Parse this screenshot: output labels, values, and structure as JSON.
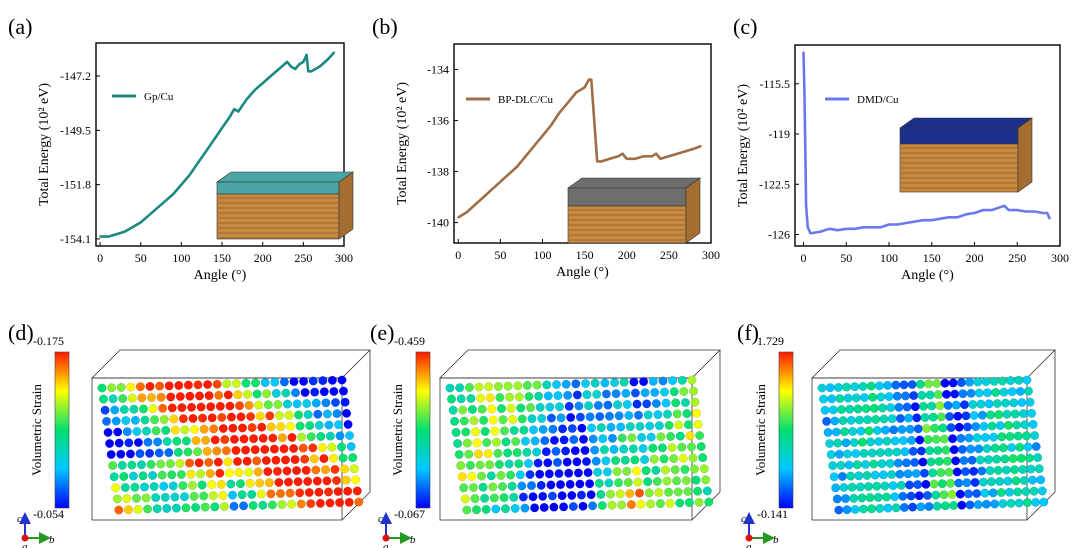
{
  "figure": {
    "panel_letters": [
      "(a)",
      "(b)",
      "(c)",
      "(d)",
      "(e)",
      "(f)"
    ],
    "colors": {
      "grad_top": "#ff1a00",
      "grad_upper": "#ffff00",
      "grad_mid": "#00e070",
      "grad_lower": "#00c8ff",
      "grad_bottom": "#0000ff",
      "copper": "#c88a40",
      "graphene": "#4aa6a6",
      "dlc": "#6e6e6e",
      "diamond": "#1a2f8a"
    },
    "axis_c": "c",
    "axis_a": "a",
    "axis_b": "b"
  },
  "chart_data": [
    {
      "type": "line",
      "xlabel": "Angle (°)",
      "ylabel": "Total Energy (10² eV)",
      "xlim": [
        -5,
        300
      ],
      "ylim": [
        -154.4,
        -145.8
      ],
      "xticks": [
        0,
        50,
        100,
        150,
        200,
        250,
        300
      ],
      "yticks": [
        -147.2,
        -149.5,
        -151.8,
        -154.1
      ],
      "series": [
        {
          "name": "Gp/Cu",
          "color": "#1a8a80",
          "x": [
            0,
            10,
            20,
            30,
            40,
            50,
            60,
            70,
            80,
            90,
            100,
            110,
            120,
            130,
            140,
            150,
            160,
            165,
            170,
            180,
            190,
            200,
            210,
            220,
            230,
            235,
            240,
            245,
            250,
            254,
            256,
            260,
            270,
            280,
            288
          ],
          "y": [
            -154.0,
            -154.0,
            -153.9,
            -153.8,
            -153.6,
            -153.4,
            -153.1,
            -152.8,
            -152.5,
            -152.2,
            -151.8,
            -151.4,
            -150.9,
            -150.4,
            -149.9,
            -149.4,
            -148.9,
            -148.6,
            -148.7,
            -148.2,
            -147.8,
            -147.5,
            -147.2,
            -146.9,
            -146.6,
            -146.8,
            -146.9,
            -146.7,
            -146.6,
            -146.3,
            -147.0,
            -147.0,
            -146.8,
            -146.5,
            -146.2
          ]
        }
      ]
    },
    {
      "type": "line",
      "xlabel": "Angle (°)",
      "ylabel": "Total Energy (10² eV)",
      "xlim": [
        -5,
        300
      ],
      "ylim": [
        -140.8,
        -133.0
      ],
      "xticks": [
        0,
        50,
        100,
        150,
        200,
        250,
        300
      ],
      "yticks": [
        -134.0,
        -136.0,
        -138.0,
        -140.0
      ],
      "series": [
        {
          "name": "BP-DLC/Cu",
          "color": "#9e6e48",
          "x": [
            0,
            10,
            20,
            30,
            40,
            50,
            60,
            70,
            80,
            90,
            100,
            110,
            120,
            130,
            140,
            150,
            155,
            158,
            165,
            170,
            180,
            190,
            195,
            200,
            210,
            220,
            230,
            235,
            240,
            250,
            260,
            270,
            280,
            288
          ],
          "y": [
            -139.8,
            -139.6,
            -139.3,
            -139.0,
            -138.7,
            -138.4,
            -138.1,
            -137.8,
            -137.4,
            -137.0,
            -136.6,
            -136.2,
            -135.7,
            -135.3,
            -134.9,
            -134.7,
            -134.4,
            -134.4,
            -137.6,
            -137.6,
            -137.5,
            -137.4,
            -137.3,
            -137.5,
            -137.5,
            -137.4,
            -137.4,
            -137.3,
            -137.5,
            -137.4,
            -137.3,
            -137.2,
            -137.1,
            -137.0
          ]
        }
      ]
    },
    {
      "type": "line",
      "xlabel": "Angle (°)",
      "ylabel": "Total Energy (10² eV)",
      "xlim": [
        -10,
        300
      ],
      "ylim": [
        -126.8,
        -112.8
      ],
      "xticks": [
        0,
        50,
        100,
        150,
        200,
        250,
        300
      ],
      "yticks": [
        -115.5,
        -119.0,
        -122.5,
        -126.0
      ],
      "series": [
        {
          "name": "DMD/Cu",
          "color": "#6a78f0",
          "x": [
            0,
            1,
            2,
            3,
            5,
            8,
            10,
            20,
            30,
            40,
            50,
            60,
            70,
            80,
            90,
            100,
            110,
            120,
            130,
            140,
            150,
            160,
            170,
            180,
            190,
            200,
            210,
            220,
            230,
            235,
            240,
            250,
            260,
            270,
            280,
            285,
            288
          ],
          "y": [
            -113.3,
            -116.0,
            -120.0,
            -124.0,
            -125.5,
            -125.9,
            -125.9,
            -125.8,
            -125.6,
            -125.7,
            -125.6,
            -125.6,
            -125.5,
            -125.5,
            -125.5,
            -125.3,
            -125.3,
            -125.2,
            -125.1,
            -125.0,
            -125.0,
            -124.9,
            -124.8,
            -124.8,
            -124.6,
            -124.5,
            -124.3,
            -124.3,
            -124.1,
            -124.0,
            -124.3,
            -124.3,
            -124.4,
            -124.4,
            -124.5,
            -124.5,
            -124.9
          ]
        }
      ]
    }
  ],
  "strain_panels": [
    {
      "label": "Volumetric Strain",
      "max": "-0.175",
      "min": "-0.054"
    },
    {
      "label": "Volumetric Strain",
      "max": "-0.459",
      "min": "-0.067"
    },
    {
      "label": "Volumetric Strain",
      "max": "1.729",
      "min": "-0.141"
    }
  ]
}
